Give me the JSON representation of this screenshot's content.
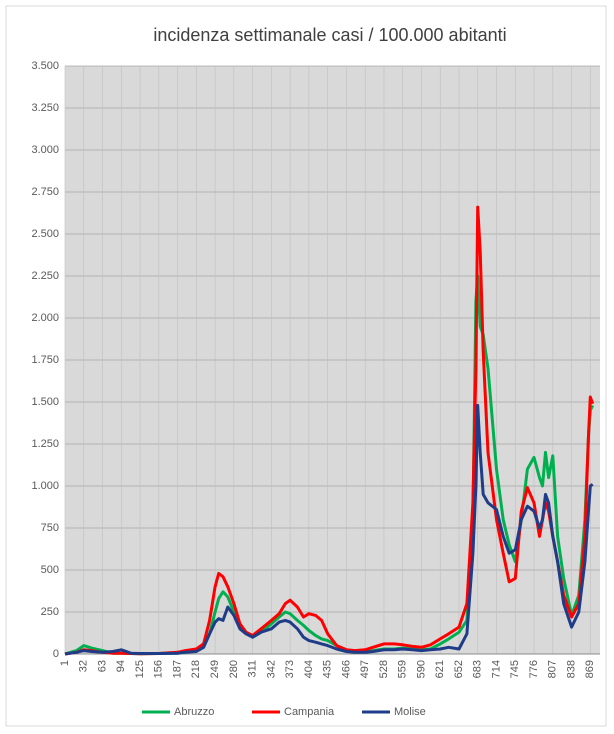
{
  "chart_data": {
    "type": "line",
    "title": "incidenza settimanale casi / 100.000 abitanti",
    "x": [
      1,
      20,
      32,
      45,
      63,
      80,
      94,
      110,
      125,
      156,
      187,
      200,
      218,
      230,
      240,
      249,
      255,
      262,
      270,
      280,
      290,
      300,
      311,
      325,
      342,
      355,
      365,
      373,
      385,
      395,
      404,
      415,
      425,
      435,
      450,
      466,
      480,
      497,
      510,
      528,
      545,
      559,
      575,
      590,
      605,
      621,
      635,
      652,
      665,
      675,
      680,
      683,
      687,
      692,
      700,
      714,
      725,
      735,
      745,
      755,
      765,
      776,
      785,
      790,
      795,
      800,
      807,
      815,
      825,
      838,
      850,
      860,
      866,
      869,
      873
    ],
    "series": [
      {
        "name": "Abruzzo",
        "color": "#00b050",
        "values": [
          0,
          20,
          50,
          35,
          20,
          5,
          5,
          3,
          2,
          3,
          5,
          10,
          20,
          40,
          120,
          250,
          330,
          370,
          340,
          250,
          180,
          130,
          100,
          130,
          180,
          220,
          250,
          240,
          200,
          170,
          140,
          110,
          90,
          80,
          50,
          25,
          15,
          15,
          20,
          30,
          30,
          35,
          30,
          25,
          30,
          60,
          90,
          130,
          200,
          800,
          2100,
          2250,
          1950,
          1900,
          1700,
          1100,
          800,
          650,
          550,
          800,
          1100,
          1170,
          1050,
          1000,
          1200,
          1050,
          1180,
          700,
          450,
          230,
          350,
          800,
          1300,
          1450,
          1480
        ]
      },
      {
        "name": "Campania",
        "color": "#ff0000",
        "values": [
          0,
          10,
          25,
          20,
          10,
          5,
          5,
          3,
          2,
          3,
          10,
          20,
          30,
          60,
          200,
          400,
          480,
          460,
          400,
          300,
          180,
          130,
          110,
          150,
          200,
          240,
          300,
          320,
          280,
          220,
          240,
          230,
          200,
          120,
          50,
          25,
          20,
          25,
          40,
          60,
          60,
          55,
          45,
          40,
          55,
          90,
          120,
          160,
          300,
          900,
          1700,
          2660,
          2400,
          1800,
          1200,
          800,
          600,
          430,
          450,
          850,
          990,
          900,
          700,
          800,
          900,
          850,
          700,
          550,
          350,
          220,
          300,
          700,
          1300,
          1530,
          1490
        ]
      },
      {
        "name": "Molise",
        "color": "#1f3c88",
        "values": [
          0,
          10,
          20,
          15,
          10,
          15,
          25,
          5,
          3,
          3,
          5,
          10,
          15,
          40,
          120,
          190,
          210,
          200,
          280,
          230,
          150,
          120,
          100,
          130,
          150,
          190,
          200,
          190,
          150,
          100,
          80,
          70,
          60,
          50,
          30,
          15,
          10,
          10,
          15,
          25,
          25,
          30,
          25,
          20,
          25,
          30,
          40,
          30,
          120,
          600,
          1000,
          1480,
          1200,
          950,
          900,
          860,
          700,
          600,
          620,
          800,
          880,
          850,
          750,
          800,
          950,
          900,
          700,
          550,
          300,
          160,
          250,
          550,
          850,
          1000,
          1010
        ]
      }
    ],
    "xlim": [
      1,
      885
    ],
    "xticks": [
      1,
      32,
      63,
      94,
      125,
      156,
      187,
      218,
      249,
      280,
      311,
      342,
      373,
      404,
      435,
      466,
      497,
      528,
      559,
      590,
      621,
      652,
      683,
      714,
      745,
      776,
      807,
      838,
      869
    ],
    "ylim": [
      0,
      3500
    ],
    "yticks": [
      0,
      250,
      500,
      750,
      {
        "value": 1000,
        "label": "1.000"
      },
      {
        "value": 1250,
        "label": "1.250"
      },
      {
        "value": 1500,
        "label": "1.500"
      },
      {
        "value": 1750,
        "label": "1.750"
      },
      {
        "value": 2000,
        "label": "2.000"
      },
      {
        "value": 2250,
        "label": "2.250"
      },
      {
        "value": 2500,
        "label": "2.500"
      },
      {
        "value": 2750,
        "label": "2.750"
      },
      {
        "value": 3000,
        "label": "3.000"
      },
      {
        "value": 3250,
        "label": "3.250"
      },
      {
        "value": 3500,
        "label": "3.500"
      }
    ],
    "grid": true,
    "legend": "bottom"
  }
}
